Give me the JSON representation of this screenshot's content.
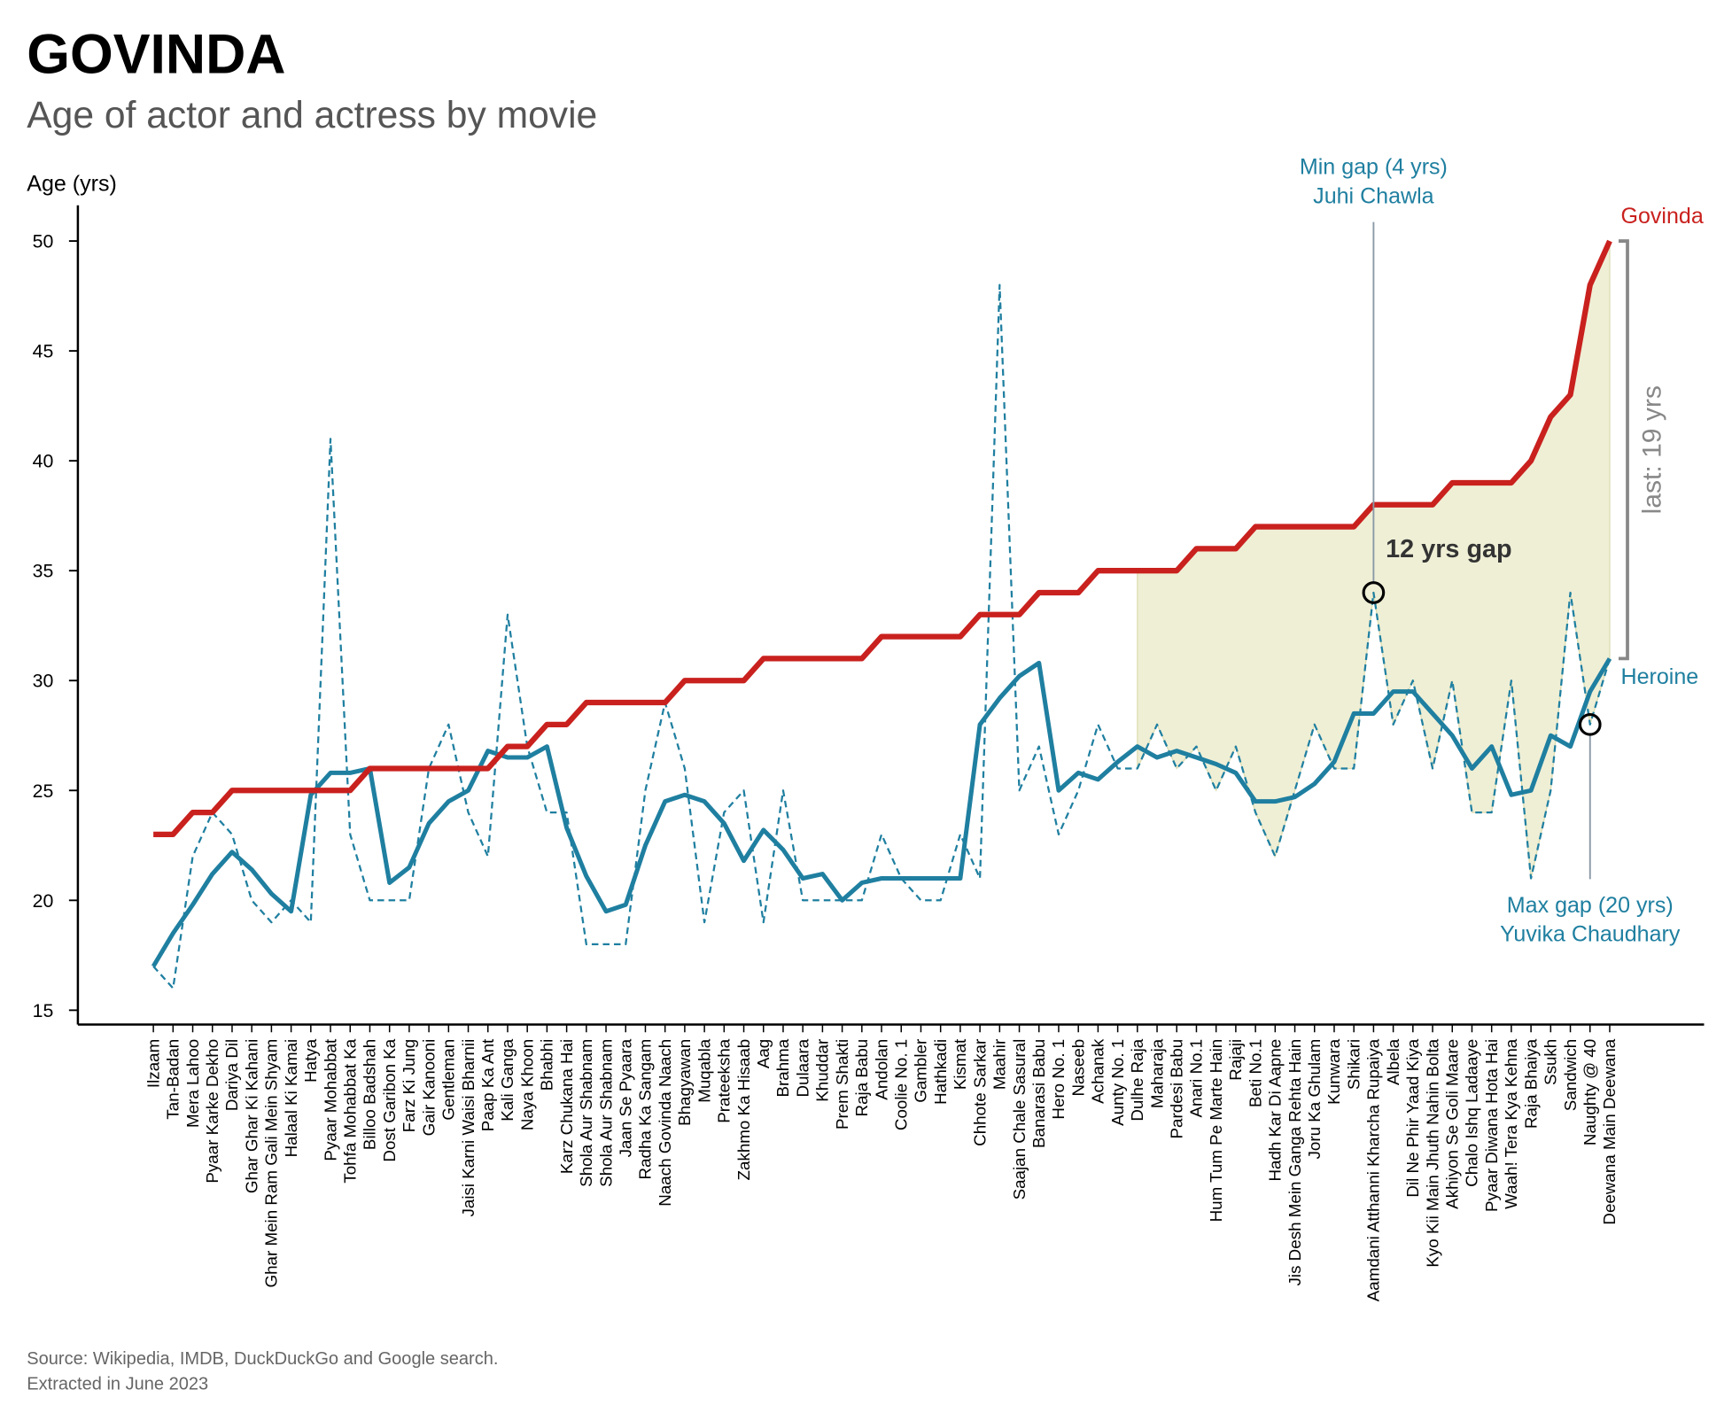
{
  "chart_data": {
    "type": "line",
    "title": "GOVINDA",
    "subtitle": "Age of actor and actress by movie",
    "y_label": "Age (yrs)",
    "source": [
      "Source: Wikipedia, IMDB, DuckDuckGo and Google search.",
      "Extracted in June 2023"
    ],
    "categories": [
      "Ilzaam",
      "Tan-Badan",
      "Mera Lahoo",
      "Pyaar Karke Dekho",
      "Dariya Dil",
      "Ghar Ghar Ki Kahani",
      "Ghar Mein Ram Gali Mein Shyam",
      "Halaal Ki Kamai",
      "Hatya",
      "Pyaar Mohabbat",
      "Tohfa Mohabbat Ka",
      "Billoo Badshah",
      "Dost Garibon Ka",
      "Farz Ki Jung",
      "Gair Kanooni",
      "Gentleman",
      "Jaisi Karni Waisi Bharnii",
      "Paap Ka Ant",
      "Kali Ganga",
      "Naya Khoon",
      "Bhabhi",
      "Karz Chukana Hai",
      "Shola Aur Shabnam",
      "Shola Aur Shabnam",
      "Jaan Se Pyaara",
      "Radha Ka Sangam",
      "Naach Govinda Naach",
      "Bhagyawan",
      "Muqabla",
      "Prateeksha",
      "Zakhmo Ka Hisaab",
      "Aag",
      "Brahma",
      "Dulaara",
      "Khuddar",
      "Prem Shakti",
      "Raja Babu",
      "Andolan",
      "Coolie No. 1",
      "Gambler",
      "Hathkadi",
      "Kismat",
      "Chhote Sarkar",
      "Maahir",
      "Saajan Chale Sasural",
      "Banarasi Babu",
      "Hero No. 1",
      "Naseeb",
      "Achanak",
      "Aunty No. 1",
      "Dulhe Raja",
      "Maharaja",
      "Pardesi Babu",
      "Anari No.1",
      "Hum Tum Pe Marte Hain",
      "Rajaji",
      "Beti No.1",
      "Hadh Kar Di Aapne",
      "Jis Desh Mein Ganga Rehta Hain",
      "Joru Ka Ghulam",
      "Kunwara",
      "Shikari",
      "Aamdani Atthanni Kharcha Rupaiya",
      "Albela",
      "Dil Ne Phir Yaad Kiya",
      "Kyo Kii Main Jhuth Nahin Bolta",
      "Akhiyon Se Goli Maare",
      "Chalo Ishq Ladaaye",
      "Pyaar Diwana Hota Hai",
      "Waah! Tera Kya Kehna",
      "Raja Bhaiya",
      "Ssukh",
      "Sandwich",
      "Naughty @ 40",
      "Deewana Main Deewana"
    ],
    "series": [
      {
        "name": "Govinda",
        "color": "#c9211e",
        "style": "solid",
        "values": [
          23,
          23,
          24,
          24,
          25,
          25,
          25,
          25,
          25,
          25,
          25,
          26,
          26,
          26,
          26,
          26,
          26,
          26,
          27,
          27,
          28,
          28,
          29,
          29,
          29,
          29,
          29,
          30,
          30,
          30,
          30,
          31,
          31,
          31,
          31,
          31,
          31,
          32,
          32,
          32,
          32,
          32,
          33,
          33,
          33,
          34,
          34,
          34,
          35,
          35,
          35,
          35,
          35,
          36,
          36,
          36,
          37,
          37,
          37,
          37,
          37,
          37,
          38,
          38,
          38,
          38,
          39,
          39,
          39,
          39,
          40,
          42,
          43,
          48,
          50
        ]
      },
      {
        "name": "Heroine",
        "color": "#1f7fa0",
        "style": "solid",
        "values": [
          17,
          18.5,
          19.8,
          21.2,
          22.2,
          21.4,
          20.3,
          19.5,
          24.8,
          25.8,
          25.8,
          26,
          20.8,
          21.5,
          23.5,
          24.5,
          25,
          26.8,
          26.5,
          26.5,
          27,
          23.3,
          21.1,
          19.5,
          19.8,
          22.5,
          24.5,
          24.8,
          24.5,
          23.5,
          21.8,
          23.2,
          22.3,
          21,
          21.2,
          20,
          20.8,
          21,
          21,
          21,
          21,
          21,
          28,
          29.2,
          30.2,
          30.8,
          25,
          25.8,
          25.5,
          26.3,
          27,
          26.5,
          26.8,
          26.5,
          26.2,
          25.8,
          24.5,
          24.5,
          24.7,
          25.3,
          26.3,
          28.5,
          28.5,
          29.5,
          29.5,
          28.5,
          27.5,
          26,
          27,
          24.8,
          25,
          27.5,
          27,
          29.5,
          31
        ]
      },
      {
        "color": "#1f7fa0",
        "style": "dashed",
        "values": [
          17,
          16,
          22,
          24,
          23,
          20,
          19,
          20,
          19,
          41,
          23,
          20,
          20,
          20,
          26,
          28,
          24,
          22,
          33,
          27,
          24,
          24,
          18,
          18,
          18,
          25,
          29,
          26,
          19,
          24,
          25,
          19,
          25,
          20,
          20,
          20,
          20,
          23,
          21,
          20,
          20,
          23,
          21,
          48,
          25,
          27,
          23,
          25,
          28,
          26,
          26,
          28,
          26,
          27,
          25,
          27,
          24,
          22,
          25,
          28,
          26,
          26,
          34,
          28,
          30,
          26,
          30,
          24,
          24,
          30,
          21,
          25,
          34,
          28,
          31
        ]
      }
    ],
    "shaded_range": [
      50,
      74
    ],
    "ylim": [
      14.35,
      51.8
    ],
    "yticks": [
      15,
      20,
      25,
      30,
      35,
      40,
      45,
      50
    ],
    "grid": false,
    "annotations": {
      "min_gap": {
        "lines": [
          "Min gap (4 yrs)",
          "Juhi Chawla"
        ],
        "index": 62
      },
      "max_gap": {
        "lines": [
          "Max gap (20 yrs)",
          "Yuvika Chaudhary"
        ],
        "index": 73
      },
      "gap_text": "12 yrs gap",
      "last_text": "last: 19 yrs"
    }
  }
}
